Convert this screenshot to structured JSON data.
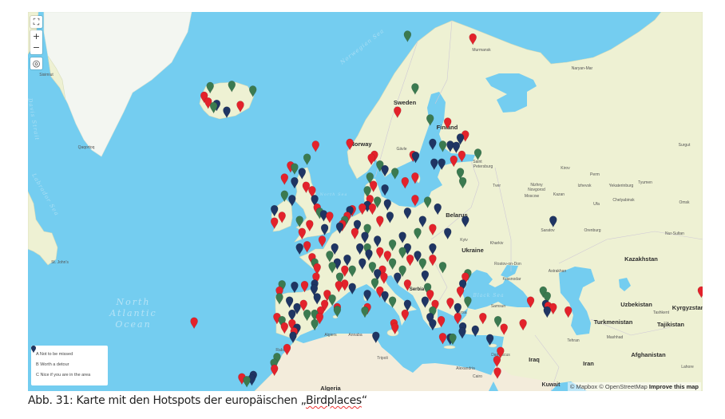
{
  "map": {
    "labels": {
      "norwegian_sea": "Norwegian Sea",
      "labrador_sea": "Labrador Sea",
      "davis_strait": "Davis Strait",
      "north_sea": "North Sea",
      "black_sea": "Black Sea",
      "ocean_1": "North",
      "ocean_2": "Atlantic",
      "ocean_3": "Ocean",
      "sweden": "Sweden",
      "finland": "Finland",
      "norway": "Norway",
      "belarus": "Belarus",
      "ukraine": "Ukraine",
      "kazakhstan": "Kazakhstan",
      "uzbekistan": "Uzbekistan",
      "turkmenistan": "Turkmenistan",
      "kyrgyzstan": "Kyrgyzstan",
      "tajikistan": "Tajikistan",
      "afghanistan": "Afghanistan",
      "iraq": "Iraq",
      "iran": "Iran",
      "algeria": "Algeria",
      "serbia": "Serbia",
      "sisimiut": "Sisimiut",
      "qaqortoq": "Qaqortoq",
      "st_johns": "St. John's",
      "murmansk": "Murmansk",
      "naryan_mar": "Naryan-Mar",
      "saint_petersburg_1": "Saint",
      "saint_petersburg_2": "Petersburg",
      "moscow": "Moscow",
      "tver": "Tver",
      "nizhny_1": "Nizhny",
      "nizhny_2": "Novgorod",
      "kirov": "Kirov",
      "perm": "Perm",
      "kazan": "Kazan",
      "izhevsk": "Izhevsk",
      "yekaterinburg": "Yekaterinburg",
      "tyumen": "Tyumen",
      "chelyabinsk": "Chelyabinsk",
      "ufa": "Ufa",
      "omsk": "Omsk",
      "surgut": "Surgut",
      "saratov": "Saratov",
      "orenburg": "Orenburg",
      "nur_sultan": "Nur-Sultan",
      "kyiv": "Kyiv",
      "kharkiv": "Kharkiv",
      "rostov": "Rostov-on-Don",
      "krasnodar": "Krasnodar",
      "astrakhan": "Astrakhan",
      "samsun": "Samsun",
      "bursa": "Bursa",
      "damascus": "Damascus",
      "alexandria": "Alexandria",
      "cairo": "Cairo",
      "tripoli": "Tripoli",
      "tehran": "Tehran",
      "mashhad": "Mashhad",
      "tashkent": "Tashkent",
      "lahore": "Lahore",
      "algiers": "Algiers",
      "annaba": "Annaba",
      "rabat": "Rabat",
      "kuwait": "Kuwait",
      "gavle": "Gävle"
    },
    "colors": {
      "water": "#74cdf0",
      "land": "#eef1d3",
      "A": "#e3222b",
      "B": "#3b7a50",
      "C": "#1f3563"
    },
    "markers": [
      [
        64.8,
        -23.5,
        "A"
      ],
      [
        65.6,
        -22.3,
        "B"
      ],
      [
        64.3,
        -22.7,
        "A"
      ],
      [
        63.9,
        -21.6,
        "B"
      ],
      [
        64.1,
        -21.0,
        "C"
      ],
      [
        65.7,
        -18.0,
        "B"
      ],
      [
        65.3,
        -13.8,
        "B"
      ],
      [
        63.5,
        -19.0,
        "C"
      ],
      [
        64.0,
        -16.3,
        "A"
      ],
      [
        69.5,
        17.0,
        "B"
      ],
      [
        69.3,
        30.0,
        "A"
      ],
      [
        65.5,
        18.5,
        "B"
      ],
      [
        63.5,
        15.0,
        "A"
      ],
      [
        60.5,
        5.5,
        "A"
      ],
      [
        59.3,
        10.4,
        "A"
      ],
      [
        59.0,
        9.8,
        "A"
      ],
      [
        59.3,
        18.1,
        "A"
      ],
      [
        59.2,
        18.6,
        "C"
      ],
      [
        62.8,
        21.5,
        "B"
      ],
      [
        62.5,
        25.0,
        "A"
      ],
      [
        61.3,
        28.5,
        "A"
      ],
      [
        61.0,
        27.5,
        "C"
      ],
      [
        60.5,
        22.0,
        "C"
      ],
      [
        60.3,
        24.0,
        "B"
      ],
      [
        60.3,
        25.5,
        "C"
      ],
      [
        60.2,
        26.7,
        "C"
      ],
      [
        58.3,
        11.5,
        "B"
      ],
      [
        57.8,
        12.5,
        "C"
      ],
      [
        57.5,
        14.5,
        "B"
      ],
      [
        56.5,
        16.5,
        "A"
      ],
      [
        57.0,
        18.5,
        "A"
      ],
      [
        58.5,
        22.3,
        "C"
      ],
      [
        58.5,
        23.8,
        "C"
      ],
      [
        58.8,
        26.2,
        "A"
      ],
      [
        59.3,
        27.8,
        "A"
      ],
      [
        59.5,
        31.0,
        "B"
      ],
      [
        57.5,
        27.5,
        "B"
      ],
      [
        56.5,
        28.0,
        "B"
      ],
      [
        55.7,
        12.5,
        "C"
      ],
      [
        56.1,
        10.2,
        "A"
      ],
      [
        55.5,
        9.0,
        "B"
      ],
      [
        57.0,
        9.5,
        "B"
      ],
      [
        60.3,
        -1.3,
        "A"
      ],
      [
        59.0,
        -3.0,
        "B"
      ],
      [
        58.2,
        -6.3,
        "A"
      ],
      [
        58.0,
        -5.5,
        "B"
      ],
      [
        57.5,
        -4.0,
        "C"
      ],
      [
        56.9,
        -7.5,
        "A"
      ],
      [
        56.5,
        -5.5,
        "C"
      ],
      [
        56.0,
        -3.2,
        "A"
      ],
      [
        55.0,
        -7.5,
        "B"
      ],
      [
        54.5,
        -6.0,
        "C"
      ],
      [
        53.3,
        -9.5,
        "C"
      ],
      [
        52.5,
        -8.0,
        "A"
      ],
      [
        51.8,
        -9.5,
        "A"
      ],
      [
        55.5,
        -2.0,
        "A"
      ],
      [
        54.5,
        -1.5,
        "C"
      ],
      [
        53.5,
        -1.0,
        "A"
      ],
      [
        52.5,
        1.5,
        "A"
      ],
      [
        52.0,
        -4.5,
        "B"
      ],
      [
        51.5,
        -2.5,
        "A"
      ],
      [
        50.5,
        -4.0,
        "A"
      ],
      [
        51.0,
        0.5,
        "C"
      ],
      [
        53.0,
        -0.5,
        "B"
      ],
      [
        52.7,
        0.3,
        "C"
      ],
      [
        53.3,
        6.0,
        "A"
      ],
      [
        53.2,
        5.5,
        "C"
      ],
      [
        52.5,
        5.0,
        "A"
      ],
      [
        52.0,
        4.5,
        "B"
      ],
      [
        51.5,
        4.0,
        "A"
      ],
      [
        51.2,
        3.5,
        "C"
      ],
      [
        53.5,
        8.0,
        "A"
      ],
      [
        53.8,
        9.0,
        "C"
      ],
      [
        54.5,
        9.5,
        "A"
      ],
      [
        54.3,
        11.0,
        "B"
      ],
      [
        54.0,
        13.0,
        "C"
      ],
      [
        53.5,
        10.0,
        "A"
      ],
      [
        52.5,
        13.5,
        "C"
      ],
      [
        52.0,
        11.5,
        "A"
      ],
      [
        51.5,
        7.0,
        "C"
      ],
      [
        51.0,
        9.0,
        "B"
      ],
      [
        50.5,
        6.5,
        "A"
      ],
      [
        50.0,
        8.5,
        "C"
      ],
      [
        49.5,
        11.0,
        "C"
      ],
      [
        48.5,
        9.0,
        "B"
      ],
      [
        48.0,
        11.5,
        "A"
      ],
      [
        47.7,
        9.3,
        "C"
      ],
      [
        54.5,
        18.5,
        "A"
      ],
      [
        53.0,
        17.0,
        "C"
      ],
      [
        52.0,
        20.0,
        "C"
      ],
      [
        50.5,
        19.0,
        "B"
      ],
      [
        51.0,
        22.0,
        "A"
      ],
      [
        53.5,
        23.0,
        "C"
      ],
      [
        54.3,
        21.0,
        "B"
      ],
      [
        50.0,
        16.0,
        "C"
      ],
      [
        49.0,
        14.0,
        "B"
      ],
      [
        48.5,
        17.0,
        "C"
      ],
      [
        47.5,
        19.0,
        "C"
      ],
      [
        46.5,
        20.0,
        "B"
      ],
      [
        47.0,
        17.5,
        "A"
      ],
      [
        48.5,
        22.0,
        "C"
      ],
      [
        47.0,
        22.0,
        "A"
      ],
      [
        46.0,
        24.0,
        "B"
      ],
      [
        45.0,
        29.0,
        "B"
      ],
      [
        44.5,
        28.5,
        "A"
      ],
      [
        43.5,
        28.0,
        "C"
      ],
      [
        42.5,
        27.5,
        "A"
      ],
      [
        48.0,
        16.0,
        "B"
      ],
      [
        47.5,
        13.0,
        "A"
      ],
      [
        46.5,
        14.0,
        "B"
      ],
      [
        50.5,
        25.0,
        "C"
      ],
      [
        52.0,
        28.5,
        "C"
      ],
      [
        49.5,
        0.0,
        "A"
      ],
      [
        48.8,
        -3.0,
        "A"
      ],
      [
        48.5,
        -4.5,
        "C"
      ],
      [
        47.2,
        -2.0,
        "A"
      ],
      [
        46.5,
        -1.5,
        "B"
      ],
      [
        45.8,
        -1.0,
        "A"
      ],
      [
        44.5,
        -1.2,
        "A"
      ],
      [
        43.5,
        -1.5,
        "C"
      ],
      [
        48.5,
        2.5,
        "C"
      ],
      [
        47.5,
        1.5,
        "B"
      ],
      [
        46.5,
        3.0,
        "C"
      ],
      [
        45.5,
        4.5,
        "A"
      ],
      [
        44.5,
        3.5,
        "B"
      ],
      [
        43.5,
        4.5,
        "A"
      ],
      [
        43.3,
        3.3,
        "A"
      ],
      [
        43.0,
        6.0,
        "C"
      ],
      [
        45.5,
        6.0,
        "B"
      ],
      [
        47.0,
        5.0,
        "C"
      ],
      [
        48.5,
        7.5,
        "C"
      ],
      [
        46.0,
        2.0,
        "B"
      ],
      [
        46.5,
        8.0,
        "C"
      ],
      [
        46.0,
        10.0,
        "B"
      ],
      [
        45.5,
        12.0,
        "A"
      ],
      [
        45.0,
        11.0,
        "C"
      ],
      [
        44.5,
        12.3,
        "A"
      ],
      [
        43.7,
        10.5,
        "B"
      ],
      [
        42.5,
        11.5,
        "A"
      ],
      [
        41.8,
        12.5,
        "C"
      ],
      [
        41.0,
        14.0,
        "B"
      ],
      [
        40.5,
        17.0,
        "C"
      ],
      [
        39.0,
        16.5,
        "A"
      ],
      [
        37.5,
        14.3,
        "A"
      ],
      [
        36.9,
        14.5,
        "A"
      ],
      [
        40.0,
        9.0,
        "A"
      ],
      [
        39.5,
        8.5,
        "B"
      ],
      [
        42.0,
        9.0,
        "C"
      ],
      [
        35.5,
        10.7,
        "C"
      ],
      [
        45.5,
        16.0,
        "B"
      ],
      [
        44.5,
        15.0,
        "C"
      ],
      [
        43.5,
        17.0,
        "A"
      ],
      [
        44.8,
        20.5,
        "C"
      ],
      [
        43.0,
        21.0,
        "B"
      ],
      [
        42.0,
        21.5,
        "A"
      ],
      [
        41.0,
        20.5,
        "C"
      ],
      [
        40.5,
        22.5,
        "A"
      ],
      [
        39.5,
        22.0,
        "B"
      ],
      [
        38.0,
        23.7,
        "A"
      ],
      [
        38.5,
        21.5,
        "C"
      ],
      [
        37.5,
        22.0,
        "C"
      ],
      [
        35.3,
        24.0,
        "A"
      ],
      [
        35.2,
        25.5,
        "C"
      ],
      [
        35.2,
        26.0,
        "B"
      ],
      [
        36.2,
        27.9,
        "C"
      ],
      [
        40.8,
        25.5,
        "A"
      ],
      [
        41.0,
        29.0,
        "B"
      ],
      [
        40.0,
        27.0,
        "C"
      ],
      [
        38.5,
        27.0,
        "A"
      ],
      [
        37.0,
        28.0,
        "C"
      ],
      [
        36.5,
        30.5,
        "C"
      ],
      [
        38.5,
        32.0,
        "A"
      ],
      [
        38.0,
        35.0,
        "B"
      ],
      [
        36.8,
        36.2,
        "A"
      ],
      [
        35.1,
        33.4,
        "C"
      ],
      [
        37.5,
        40.0,
        "A"
      ],
      [
        41.0,
        41.5,
        "A"
      ],
      [
        42.5,
        44.0,
        "B"
      ],
      [
        41.7,
        44.8,
        "B"
      ],
      [
        40.5,
        44.5,
        "C"
      ],
      [
        40.2,
        45.0,
        "A"
      ],
      [
        40.0,
        46.0,
        "A"
      ],
      [
        39.5,
        44.8,
        "C"
      ],
      [
        39.5,
        49.0,
        "A"
      ],
      [
        52.0,
        46.0,
        "C"
      ],
      [
        33.0,
        35.5,
        "A"
      ],
      [
        31.5,
        34.8,
        "A"
      ],
      [
        29.5,
        34.9,
        "A"
      ],
      [
        43.4,
        -8.0,
        "B"
      ],
      [
        43.3,
        -3.5,
        "A"
      ],
      [
        43.2,
        -5.5,
        "C"
      ],
      [
        42.5,
        -8.5,
        "A"
      ],
      [
        41.5,
        -8.5,
        "B"
      ],
      [
        41.0,
        -6.5,
        "C"
      ],
      [
        40.5,
        -3.7,
        "A"
      ],
      [
        41.5,
        -1.0,
        "C"
      ],
      [
        42.0,
        1.0,
        "A"
      ],
      [
        41.3,
        2.0,
        "B"
      ],
      [
        40.5,
        0.5,
        "A"
      ],
      [
        39.5,
        -0.3,
        "A"
      ],
      [
        39.0,
        -3.0,
        "B"
      ],
      [
        39.0,
        -6.0,
        "C"
      ],
      [
        38.5,
        -9.0,
        "A"
      ],
      [
        38.0,
        -8.0,
        "B"
      ],
      [
        37.5,
        -6.0,
        "A"
      ],
      [
        37.0,
        -7.5,
        "A"
      ],
      [
        36.8,
        -5.0,
        "C"
      ],
      [
        36.2,
        -5.6,
        "A"
      ],
      [
        37.5,
        -1.5,
        "B"
      ],
      [
        38.5,
        -0.5,
        "A"
      ],
      [
        42.8,
        -1.6,
        "C"
      ],
      [
        40.0,
        3.0,
        "A"
      ],
      [
        39.6,
        3.0,
        "B"
      ],
      [
        39.0,
        -1.5,
        "B"
      ],
      [
        40.0,
        -5.0,
        "C"
      ],
      [
        33.5,
        -7.0,
        "A"
      ],
      [
        32.0,
        -9.0,
        "B"
      ],
      [
        31.0,
        -9.6,
        "B"
      ],
      [
        30.0,
        -9.5,
        "A"
      ],
      [
        28.5,
        -16.0,
        "A"
      ],
      [
        28.0,
        -15.0,
        "B"
      ],
      [
        28.3,
        -14.0,
        "C"
      ],
      [
        28.9,
        -13.7,
        "C"
      ],
      [
        37.8,
        -25.5,
        "A"
      ],
      [
        35.5,
        -5.8,
        "C"
      ],
      [
        42.5,
        75.5,
        "A"
      ]
    ],
    "attribution": {
      "mapbox": "© Mapbox",
      "osm": "© OpenStreetMap",
      "improve": "Improve this map"
    }
  },
  "controls": {
    "fullscreen": "⛶",
    "zoom_in": "+",
    "zoom_out": "−",
    "locate": "◎"
  },
  "legend": {
    "items": [
      {
        "label": "A Not to be missed",
        "category": "A"
      },
      {
        "label": "B Worth a detour",
        "category": "B"
      },
      {
        "label": "C Nice if you are in the area",
        "category": "C"
      }
    ]
  },
  "caption": {
    "prefix": "Abb. 31: Karte mit den Hotspots der europäischen „",
    "highlight": "Birdplaces",
    "suffix": "“"
  }
}
